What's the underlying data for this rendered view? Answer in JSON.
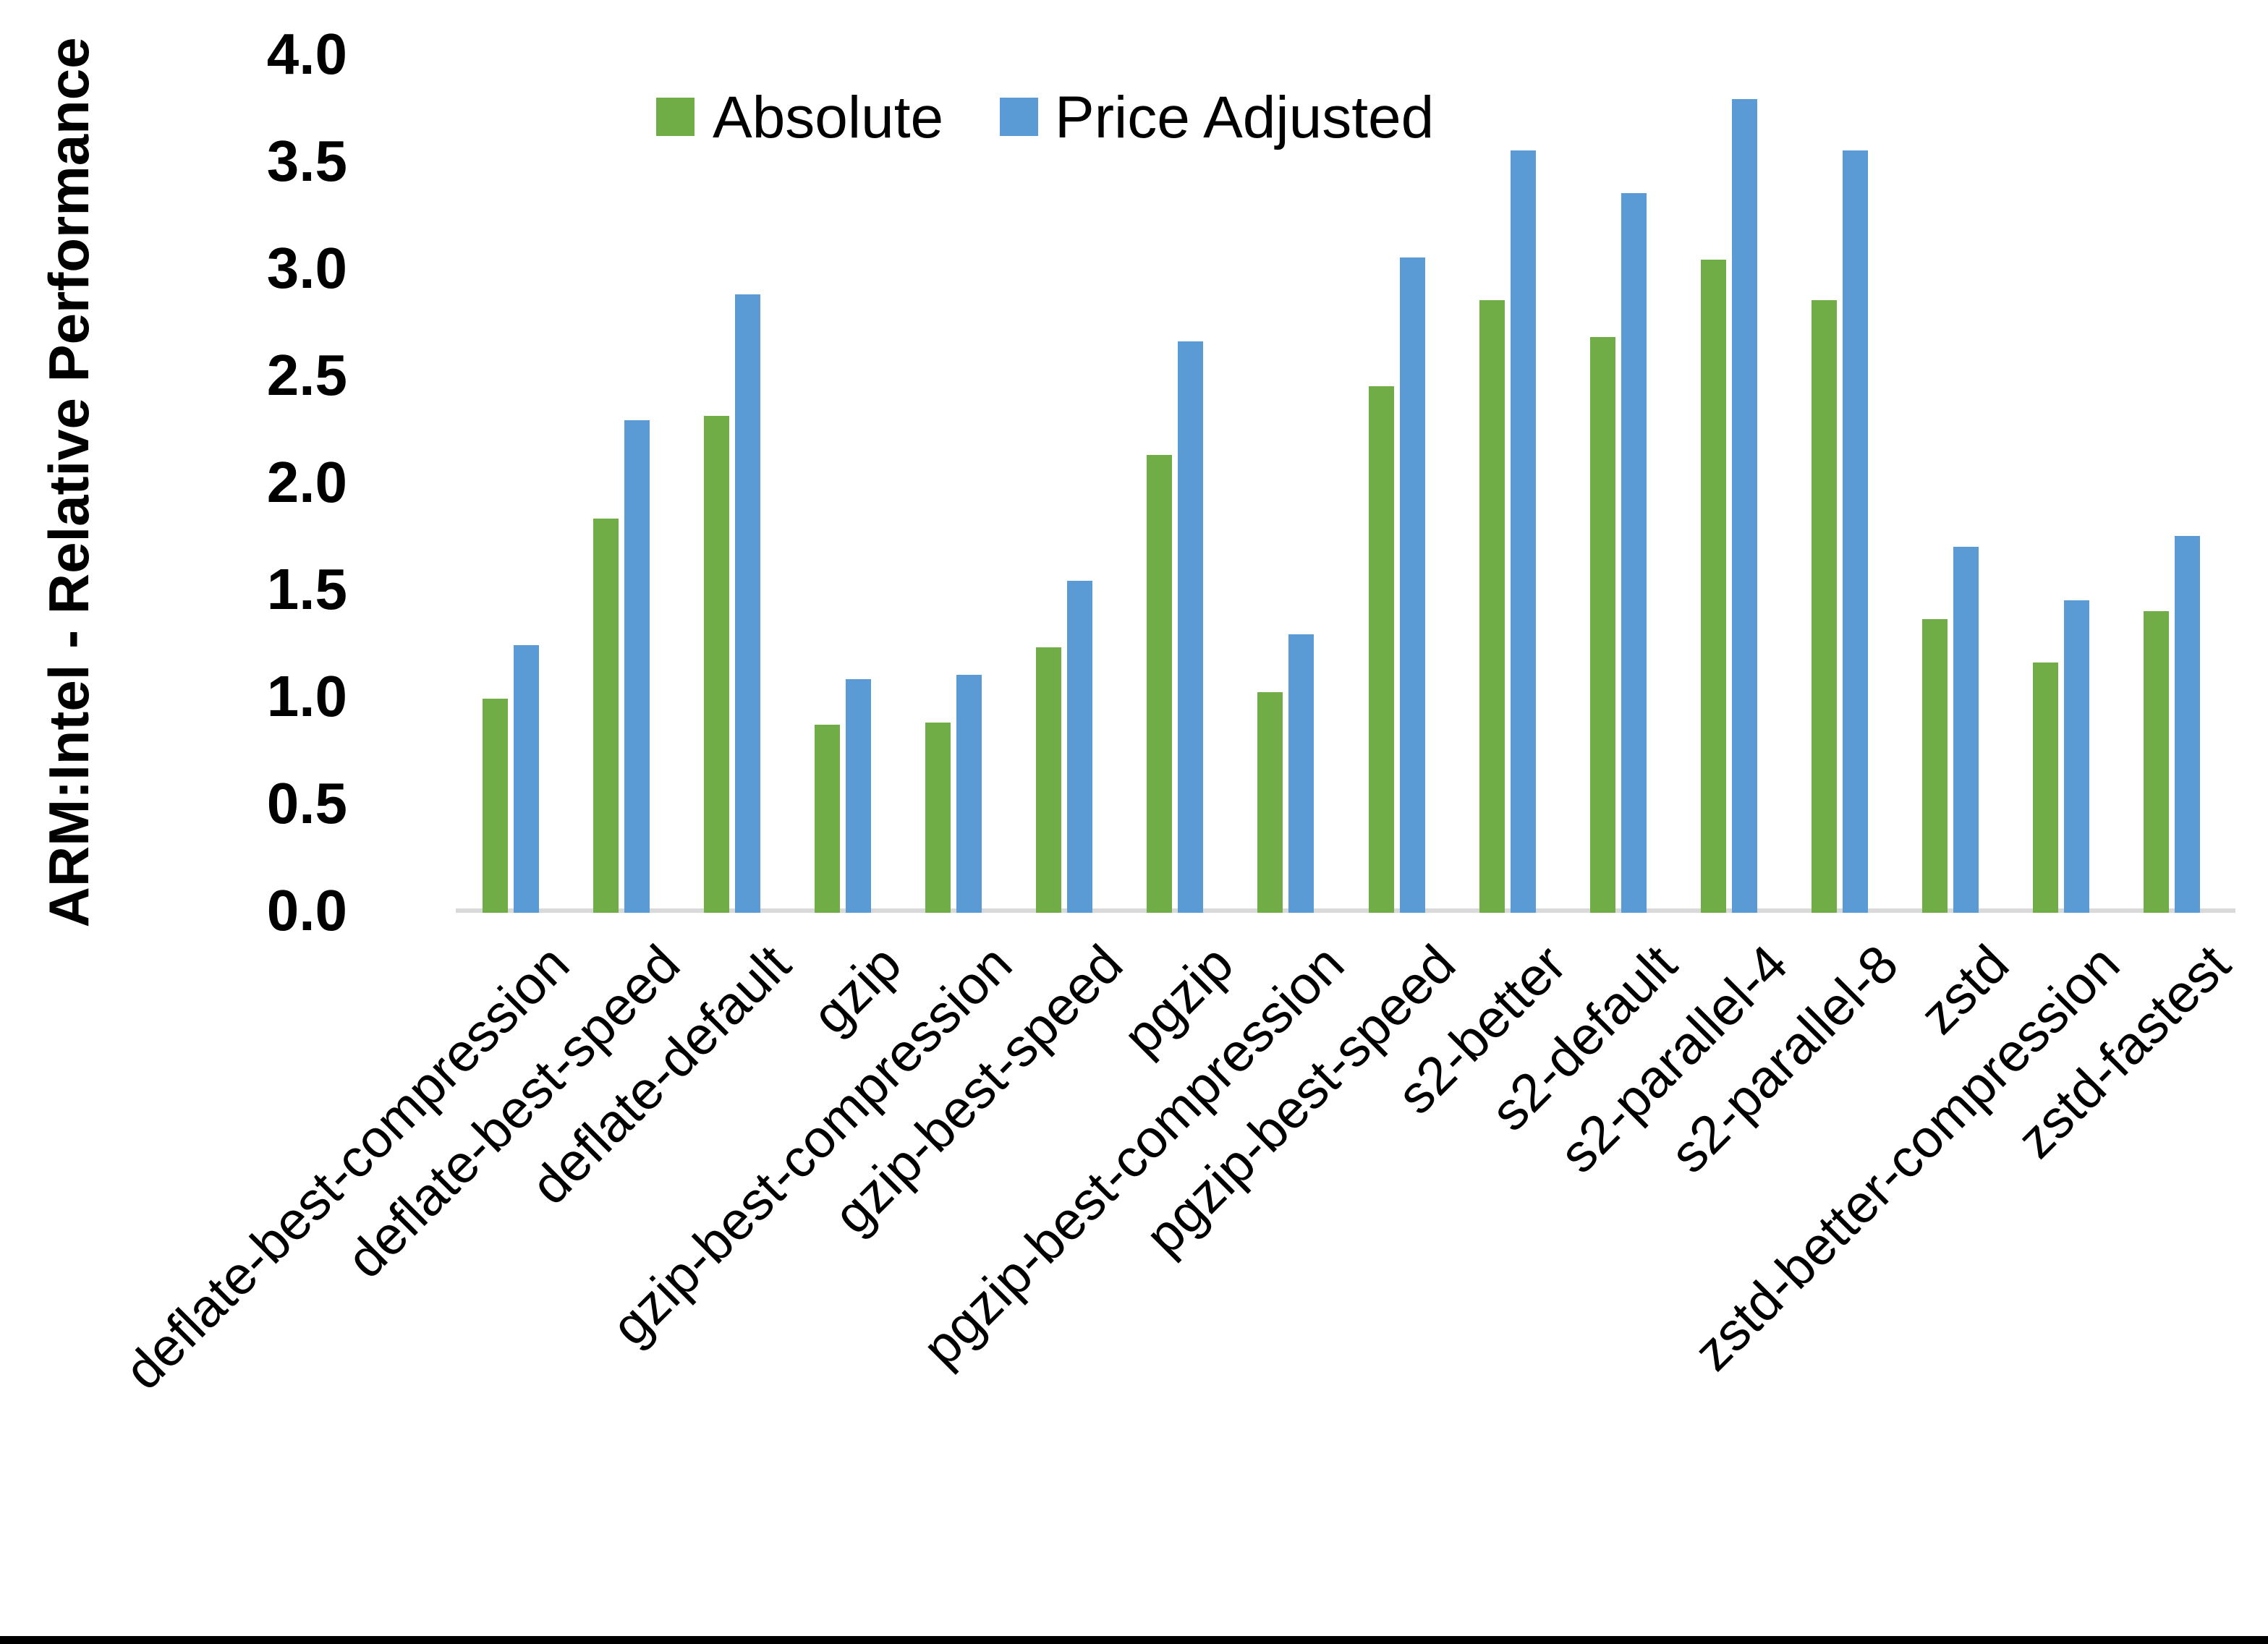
{
  "chart_data": {
    "type": "bar",
    "title": "",
    "ylabel": "ARM:Intel - Relative Performance",
    "xlabel": "",
    "ylim": [
      0.0,
      4.0
    ],
    "ytick_step": 0.5,
    "yticks": [
      "0.0",
      "0.5",
      "1.0",
      "1.5",
      "2.0",
      "2.5",
      "3.0",
      "3.5",
      "4.0"
    ],
    "grid": false,
    "legend_position": "top-center",
    "categories": [
      "deflate-best-compression",
      "deflate-best-speed",
      "deflate-default",
      "gzip",
      "gzip-best-compression",
      "gzip-best-speed",
      "pgzip",
      "pgzip-best-compression",
      "pgzip-best-speed",
      "s2-better",
      "s2-default",
      "s2-parallel-4",
      "s2-parallel-8",
      "zstd",
      "zstd-better-compression",
      "zstd-fastest"
    ],
    "series": [
      {
        "name": "Absolute",
        "color": "#70AD47",
        "values": [
          1.0,
          1.84,
          2.32,
          0.88,
          0.89,
          1.24,
          2.14,
          1.03,
          2.46,
          2.86,
          2.69,
          3.05,
          2.86,
          1.37,
          1.17,
          1.41
        ]
      },
      {
        "name": "Price Adjusted",
        "color": "#5B9BD5",
        "values": [
          1.25,
          2.3,
          2.89,
          1.09,
          1.11,
          1.55,
          2.67,
          1.3,
          3.06,
          3.56,
          3.36,
          3.8,
          3.56,
          1.71,
          1.46,
          1.76
        ]
      }
    ],
    "axis_line_color": "#D9D9D9",
    "text_color": "#000000",
    "frame_bottom_bar_color": "#000000"
  }
}
